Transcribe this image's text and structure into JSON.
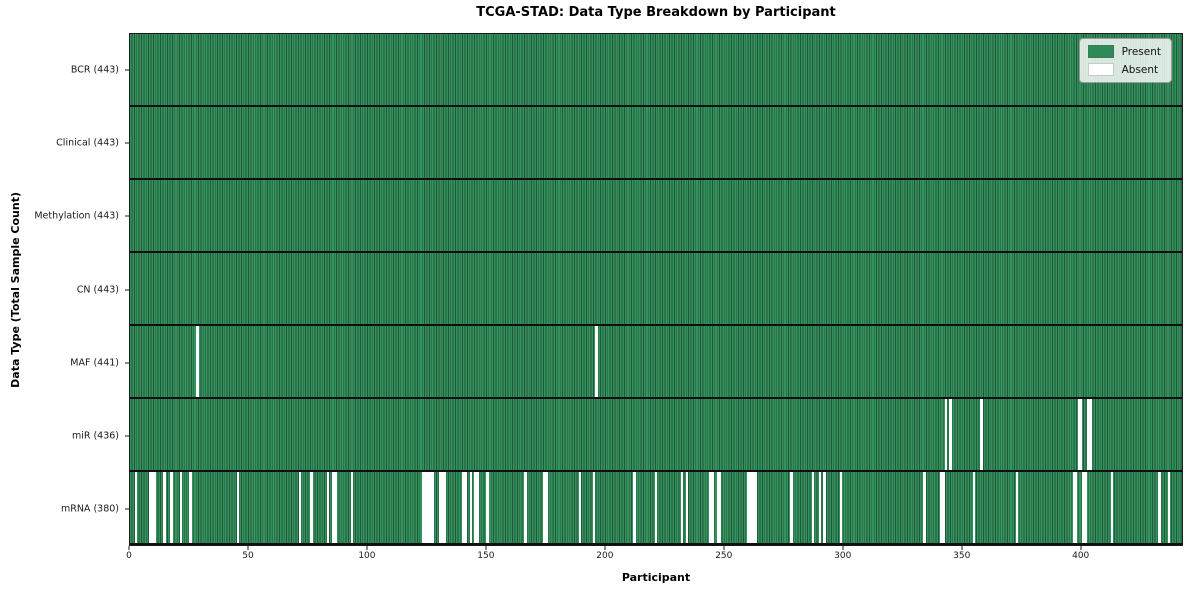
{
  "title": "TCGA-STAD: Data Type Breakdown by Participant",
  "x_axis": {
    "label": "Participant",
    "ticks": [
      0,
      50,
      100,
      150,
      200,
      250,
      300,
      350,
      400
    ],
    "max": 443
  },
  "y_axis": {
    "label": "Data Type (Total Sample Count)"
  },
  "legend": {
    "present_label": "Present",
    "absent_label": "Absent"
  },
  "colors": {
    "present": "#2e8b57",
    "present_light": "#35925f",
    "present_edge": "#1f5838",
    "absent": "#ffffff",
    "row_separator": "#101010"
  },
  "chart_data": {
    "type": "heatmap",
    "title": "TCGA-STAD: Data Type Breakdown by Participant",
    "xlabel": "Participant",
    "ylabel": "Data Type (Total Sample Count)",
    "x_range": [
      0,
      443
    ],
    "n_participants": 443,
    "x_ticks": [
      0,
      50,
      100,
      150,
      200,
      250,
      300,
      350,
      400
    ],
    "legend_entries": [
      "Present",
      "Absent"
    ],
    "legend_position": "upper right",
    "grid": false,
    "cell_states": {
      "present": 1,
      "absent": 0
    },
    "rows": [
      {
        "label": "BCR (443)",
        "data_type": "BCR",
        "total_sample_count": 443,
        "absent_count": 0,
        "absent_participants": []
      },
      {
        "label": "Clinical (443)",
        "data_type": "Clinical",
        "total_sample_count": 443,
        "absent_count": 0,
        "absent_participants": []
      },
      {
        "label": "Methylation (443)",
        "data_type": "Methylation",
        "total_sample_count": 443,
        "absent_count": 0,
        "absent_participants": []
      },
      {
        "label": "CN (443)",
        "data_type": "CN",
        "total_sample_count": 443,
        "absent_count": 0,
        "absent_participants": []
      },
      {
        "label": "MAF (441)",
        "data_type": "MAF",
        "total_sample_count": 441,
        "absent_count": 2,
        "absent_participants": [
          28,
          196
        ]
      },
      {
        "label": "miR (436)",
        "data_type": "miR",
        "total_sample_count": 436,
        "absent_count": 7,
        "absent_participants": [
          343,
          345,
          358,
          399,
          400,
          403,
          404
        ]
      },
      {
        "label": "mRNA (380)",
        "data_type": "mRNA",
        "total_sample_count": 380,
        "absent_count": 63,
        "absent_participants": [
          2,
          8,
          9,
          10,
          14,
          17,
          21,
          25,
          45,
          71,
          76,
          83,
          85,
          86,
          93,
          123,
          124,
          125,
          126,
          127,
          130,
          131,
          132,
          140,
          141,
          143,
          145,
          146,
          150,
          166,
          174,
          175,
          189,
          195,
          212,
          221,
          232,
          234,
          244,
          245,
          247,
          248,
          260,
          261,
          262,
          263,
          278,
          287,
          290,
          292,
          299,
          334,
          341,
          342,
          355,
          373,
          397,
          398,
          401,
          402,
          413,
          433,
          437
        ]
      }
    ],
    "colors": {
      "present": "#2e8b57",
      "absent": "#ffffff"
    }
  }
}
